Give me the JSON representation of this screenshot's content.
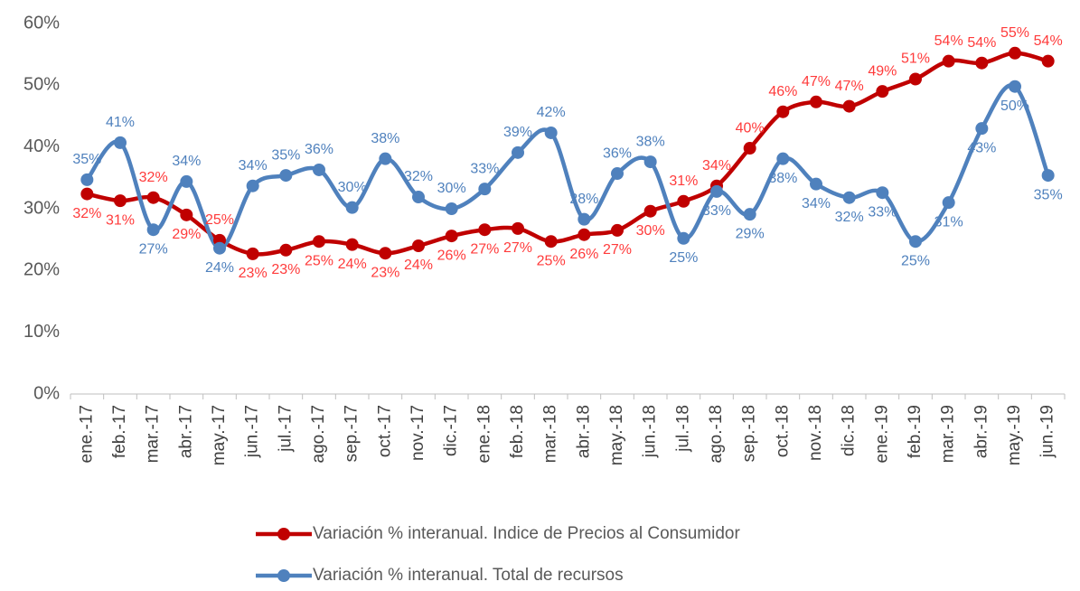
{
  "chart_data": {
    "type": "line",
    "smooth": true,
    "grid": false,
    "categories": [
      "ene.-17",
      "feb.-17",
      "mar.-17",
      "abr.-17",
      "may.-17",
      "jun.-17",
      "jul.-17",
      "ago.-17",
      "sep.-17",
      "oct.-17",
      "nov.-17",
      "dic.-17",
      "ene.-18",
      "feb.-18",
      "mar.-18",
      "abr.-18",
      "may.-18",
      "jun.-18",
      "jul.-18",
      "ago.-18",
      "sep.-18",
      "oct.-18",
      "nov.-18",
      "dic.-18",
      "ene.-19",
      "feb.-19",
      "mar.-19",
      "abr.-19",
      "may.-19",
      "jun.-19"
    ],
    "ylim": [
      0,
      60
    ],
    "yticks": [
      {
        "value": 0,
        "label": "0%"
      },
      {
        "value": 10,
        "label": "10%"
      },
      {
        "value": 20,
        "label": "20%"
      },
      {
        "value": 30,
        "label": "30%"
      },
      {
        "value": 40,
        "label": "40%"
      },
      {
        "value": 50,
        "label": "50%"
      },
      {
        "value": 60,
        "label": "60%"
      }
    ],
    "series": [
      {
        "name": "Variación % interanual. Indice de Precios al Consumidor",
        "color": "#c00000",
        "label_color": "#ff3b3b",
        "values": [
          32.4,
          31.3,
          31.8,
          29.0,
          24.9,
          22.7,
          23.3,
          24.7,
          24.2,
          22.8,
          24.0,
          25.6,
          26.6,
          26.8,
          24.7,
          25.8,
          26.5,
          29.6,
          31.2,
          33.7,
          39.8,
          45.7,
          47.3,
          46.6,
          49.0,
          51.0,
          53.9,
          53.6,
          55.2,
          53.9
        ],
        "value_labels": [
          "32%",
          "31%",
          "32%",
          "29%",
          "25%",
          "23%",
          "23%",
          "25%",
          "24%",
          "23%",
          "24%",
          "26%",
          "27%",
          "27%",
          "25%",
          "26%",
          "27%",
          "30%",
          "31%",
          "34%",
          "40%",
          "46%",
          "47%",
          "47%",
          "49%",
          "51%",
          "54%",
          "54%",
          "55%",
          "54%"
        ]
      },
      {
        "name": "Variación % interanual. Total de recursos",
        "color": "#4f81bd",
        "label_color": "#4f81bd",
        "values": [
          34.7,
          40.7,
          26.6,
          34.4,
          23.6,
          33.7,
          35.4,
          36.3,
          30.2,
          38.1,
          31.9,
          30.0,
          33.2,
          39.1,
          42.3,
          28.3,
          35.7,
          37.6,
          25.2,
          32.8,
          29.1,
          38.1,
          34.0,
          31.8,
          32.6,
          24.7,
          31.0,
          43.0,
          49.8,
          35.4
        ],
        "value_labels": [
          "35%",
          "41%",
          "27%",
          "34%",
          "24%",
          "34%",
          "35%",
          "36%",
          "30%",
          "38%",
          "32%",
          "30%",
          "33%",
          "39%",
          "42%",
          "28%",
          "36%",
          "38%",
          "25%",
          "33%",
          "29%",
          "38%",
          "34%",
          "32%",
          "33%",
          "25%",
          "31%",
          "43%",
          "50%",
          "35%"
        ]
      }
    ]
  }
}
